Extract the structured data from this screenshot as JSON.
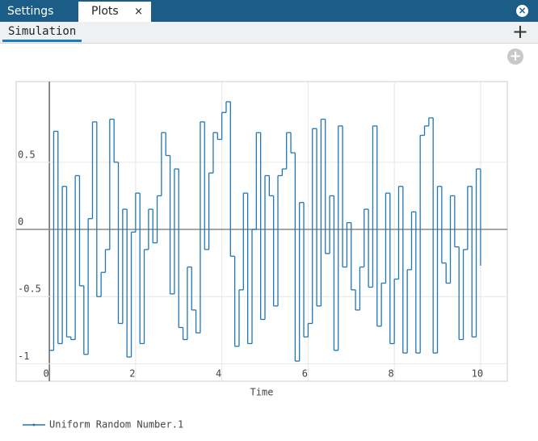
{
  "tabs": {
    "settings": "Settings",
    "plots": "Plots",
    "close": "×"
  },
  "subtabs": {
    "simulation": "Simulation",
    "add": "+"
  },
  "add_plot": "+",
  "chart_data": {
    "type": "line",
    "line_shape": "hv",
    "x_label": "Time",
    "x": [
      0,
      0.1,
      0.2,
      0.3,
      0.4,
      0.5,
      0.6,
      0.7,
      0.8,
      0.9,
      1,
      1.1,
      1.2,
      1.3,
      1.4,
      1.5,
      1.6,
      1.7,
      1.8,
      1.9,
      2,
      2.1,
      2.2,
      2.3,
      2.4,
      2.5,
      2.6,
      2.7,
      2.8,
      2.9,
      3,
      3.1,
      3.2,
      3.3,
      3.4,
      3.5,
      3.6,
      3.7,
      3.8,
      3.9,
      4,
      4.1,
      4.2,
      4.3,
      4.4,
      4.5,
      4.6,
      4.7,
      4.8,
      4.9,
      5,
      5.1,
      5.2,
      5.3,
      5.4,
      5.5,
      5.6,
      5.7,
      5.8,
      5.9,
      6,
      6.1,
      6.2,
      6.3,
      6.4,
      6.5,
      6.6,
      6.7,
      6.8,
      6.9,
      7,
      7.1,
      7.2,
      7.3,
      7.4,
      7.5,
      7.6,
      7.7,
      7.8,
      7.9,
      8,
      8.1,
      8.2,
      8.3,
      8.4,
      8.5,
      8.6,
      8.7,
      8.8,
      8.9,
      9,
      9.1,
      9.2,
      9.3,
      9.4,
      9.5,
      9.6,
      9.7,
      9.8,
      9.9,
      10
    ],
    "series": [
      {
        "name": "Uniform Random Number.1",
        "color": "#1f77b4",
        "values": [
          -0.9,
          0.73,
          -0.85,
          0.32,
          -0.8,
          -0.82,
          0.4,
          -0.42,
          -0.93,
          0.08,
          0.8,
          -0.5,
          -0.32,
          -0.15,
          0.82,
          0.5,
          -0.7,
          0.15,
          -0.95,
          -0.02,
          0.27,
          -0.85,
          -0.15,
          0.15,
          -0.1,
          0.25,
          0.72,
          0.55,
          -0.48,
          0.45,
          -0.73,
          -0.82,
          -0.28,
          -0.6,
          -0.77,
          0.8,
          -0.15,
          0.42,
          0.72,
          0.67,
          0.87,
          0.95,
          -0.2,
          -0.87,
          -0.45,
          0.27,
          -0.85,
          0,
          0.72,
          -0.67,
          0.4,
          0.25,
          -0.57,
          0.4,
          0.45,
          0.72,
          0.57,
          -0.98,
          0.2,
          -0.8,
          -0.7,
          0.75,
          -0.57,
          0.82,
          -0.18,
          0.25,
          -0.9,
          0.77,
          -0.28,
          0.05,
          -0.45,
          -0.6,
          -0.28,
          0.15,
          -0.43,
          0.77,
          -0.72,
          -0.4,
          0.27,
          -0.85,
          -0.37,
          0.32,
          -0.92,
          -0.3,
          0.13,
          -0.92,
          0.7,
          0.77,
          0.83,
          -0.92,
          0.32,
          -0.25,
          -0.4,
          0.25,
          -0.13,
          -0.82,
          -0.15,
          0.32,
          -0.8,
          0.45,
          -0.27
        ]
      }
    ],
    "xlim": [
      -0.77,
      10.62
    ],
    "ylim": [
      -1.13,
      1.1
    ],
    "xticks": [
      0,
      2,
      4,
      6,
      8,
      10
    ],
    "yticks": [
      -1,
      -0.5,
      0,
      0.5
    ],
    "grid": true,
    "legend": "bottom-left"
  }
}
